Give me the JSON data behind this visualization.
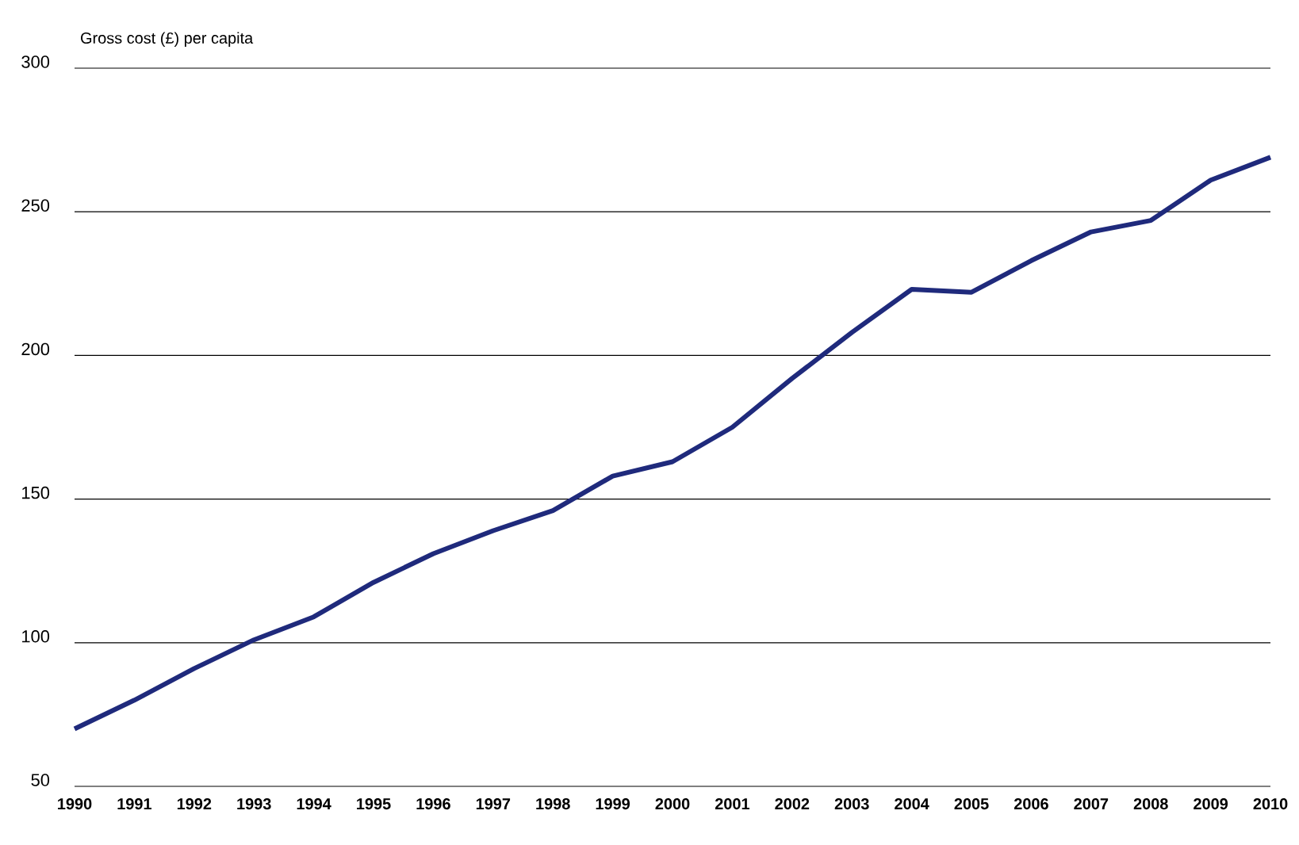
{
  "chart_data": {
    "type": "line",
    "ylabel": "Gross cost (£) per capita",
    "categories": [
      "1990",
      "1991",
      "1992",
      "1993",
      "1994",
      "1995",
      "1996",
      "1997",
      "1998",
      "1999",
      "2000",
      "2001",
      "2002",
      "2003",
      "2004",
      "2005",
      "2006",
      "2007",
      "2008",
      "2009",
      "2010"
    ],
    "series": [
      {
        "color": "#1f2a7c",
        "values": [
          70,
          80,
          91,
          101,
          109,
          121,
          131,
          139,
          146,
          158,
          163,
          175,
          192,
          208,
          223,
          222,
          233,
          243,
          247,
          261,
          269
        ]
      }
    ],
    "ylim": [
      50,
      300
    ],
    "yticks": [
      50,
      100,
      150,
      200,
      250,
      300
    ],
    "grid": "y",
    "marker": "none",
    "line_style": "solid"
  }
}
